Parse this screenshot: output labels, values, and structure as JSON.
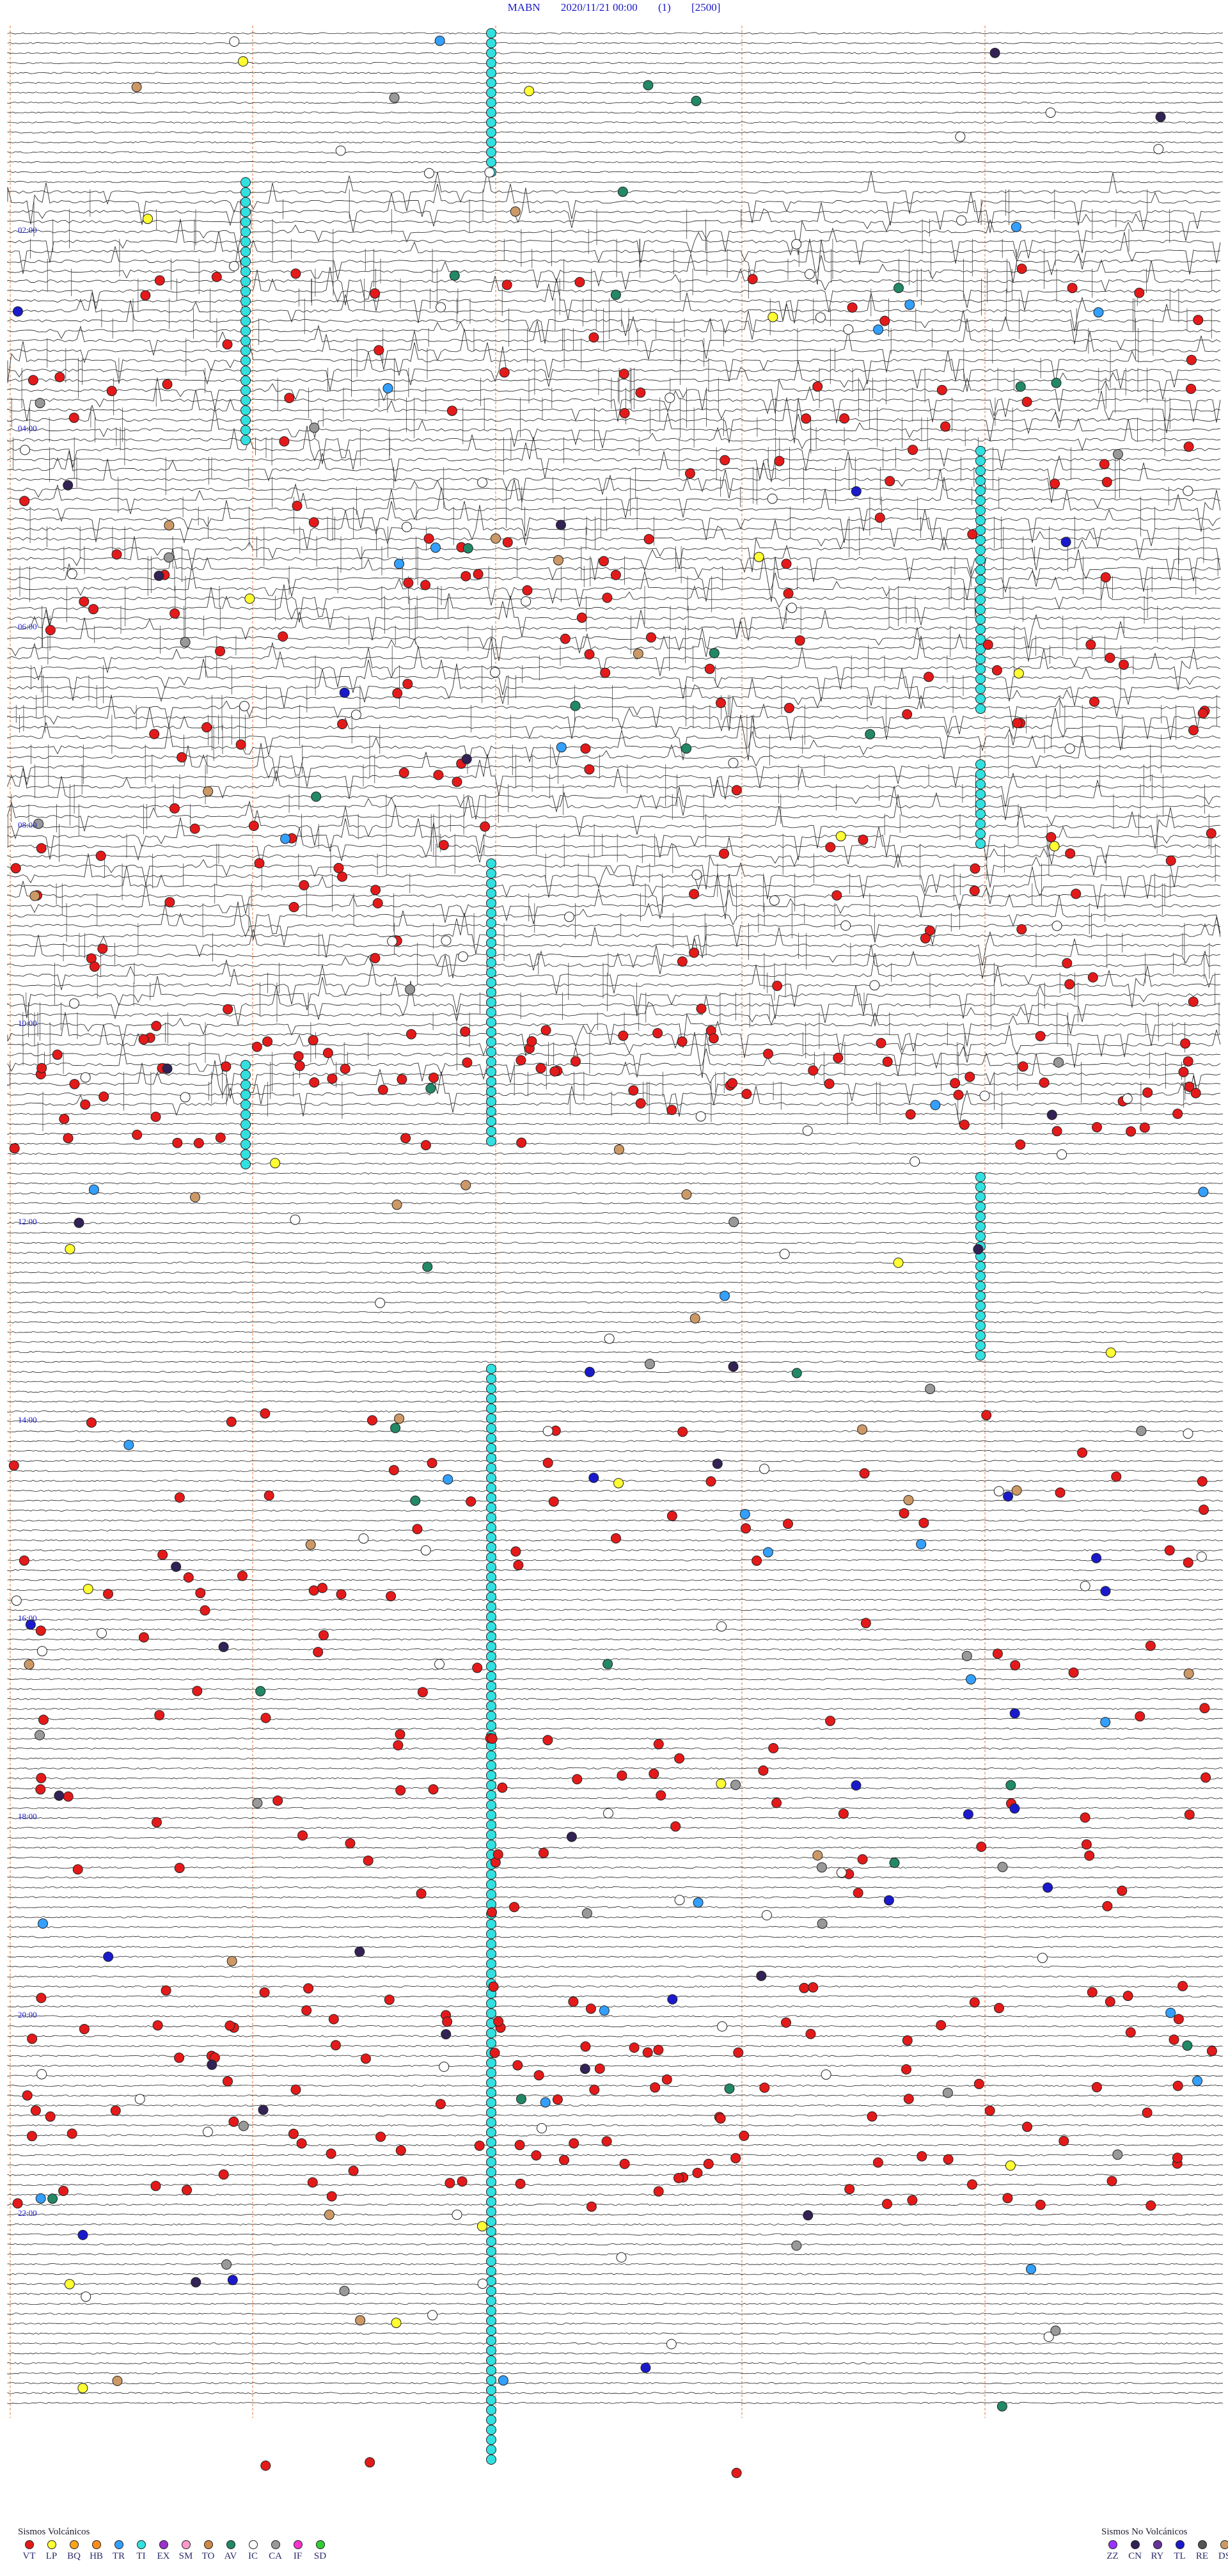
{
  "header": {
    "station": "MABN",
    "datetime": "2020/11/21 00:00",
    "gain": "(1)",
    "filter": "[2500]"
  },
  "time_labels": [
    "02:00",
    "04:00",
    "06:00",
    "08:00",
    "10:00",
    "12:00",
    "14:00",
    "16:00",
    "18:00",
    "20:00",
    "22:00"
  ],
  "legend_volcanic": {
    "title": "Sismos Volcánicos",
    "items": [
      {
        "code": "VT",
        "color": "#e41a1a"
      },
      {
        "code": "LP",
        "color": "#ffff33"
      },
      {
        "code": "BQ",
        "color": "#ffa31a"
      },
      {
        "code": "HB",
        "color": "#ff8c1a"
      },
      {
        "code": "TR",
        "color": "#33a0ff"
      },
      {
        "code": "TI",
        "color": "#33e0e0"
      },
      {
        "code": "EX",
        "color": "#9933cc"
      },
      {
        "code": "SM",
        "color": "#ff99cc"
      },
      {
        "code": "TO",
        "color": "#cc8844"
      },
      {
        "code": "AV",
        "color": "#228866"
      },
      {
        "code": "IC",
        "color": "#ffffff"
      },
      {
        "code": "CA",
        "color": "#999999"
      },
      {
        "code": "IF",
        "color": "#ff33cc"
      },
      {
        "code": "SD",
        "color": "#33cc33"
      }
    ]
  },
  "legend_nonvolcanic": {
    "title": "Sismos No Volcánicos",
    "items": [
      {
        "code": "ZZ",
        "color": "#9933ff"
      },
      {
        "code": "CN",
        "color": "#332255"
      },
      {
        "code": "RY",
        "color": "#663399"
      },
      {
        "code": "TL",
        "color": "#1a1acc"
      },
      {
        "code": "RE",
        "color": "#555555"
      },
      {
        "code": "DS",
        "color": "#cc9966"
      }
    ]
  }
}
